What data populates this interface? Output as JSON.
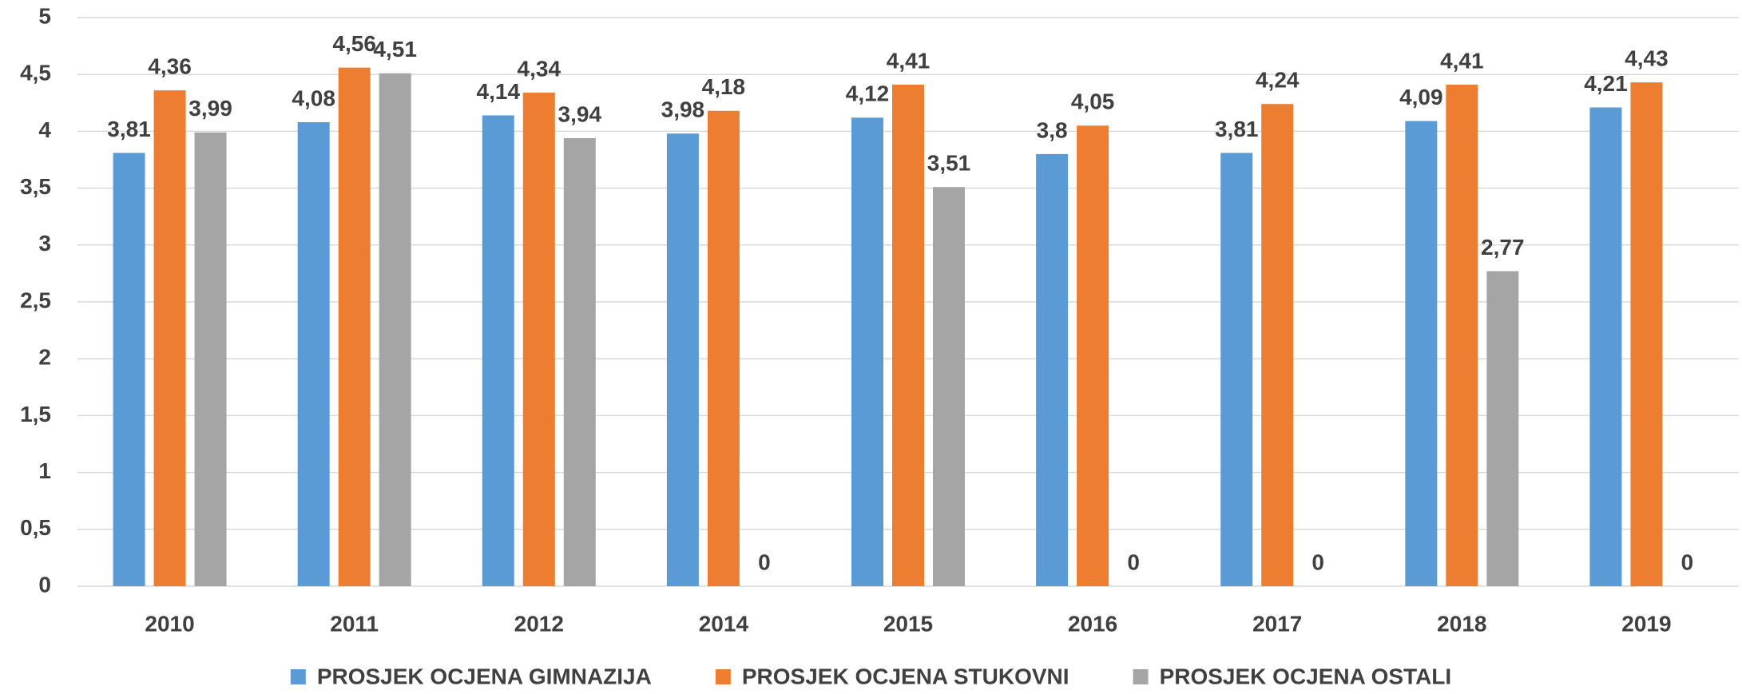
{
  "chart_data": {
    "type": "bar",
    "categories": [
      "2010",
      "2011",
      "2012",
      "2014",
      "2015",
      "2016",
      "2017",
      "2018",
      "2019"
    ],
    "series": [
      {
        "name": "PROSJEK OCJENA GIMNAZIJA",
        "color": "#5b9bd5",
        "label_color": "#404040",
        "values": [
          3.81,
          4.08,
          4.14,
          3.98,
          4.12,
          3.8,
          3.81,
          4.09,
          4.21
        ],
        "value_labels": [
          "3,81",
          "4,08",
          "4,14",
          "3,98",
          "4,12",
          "3,8",
          "3,81",
          "4,09",
          "4,21"
        ]
      },
      {
        "name": "PROSJEK OCJENA STUKOVNI",
        "color": "#ed7d31",
        "label_color": "#c55a11",
        "values": [
          4.36,
          4.56,
          4.34,
          4.18,
          4.41,
          4.05,
          4.24,
          4.41,
          4.43
        ],
        "value_labels": [
          "4,36",
          "4,56",
          "4,34",
          "4,18",
          "4,41",
          "4,05",
          "4,24",
          "4,41",
          "4,43"
        ]
      },
      {
        "name": "PROSJEK OCJENA OSTALI",
        "color": "#a5a5a5",
        "label_color": "#404040",
        "values": [
          3.99,
          4.51,
          3.94,
          0,
          3.51,
          0,
          0,
          2.77,
          0
        ],
        "value_labels": [
          "3,99",
          "4,51",
          "3,94",
          "0",
          "3,51",
          "0",
          "0",
          "2,77",
          "0"
        ]
      }
    ],
    "ylim": [
      0,
      5
    ],
    "yticks": [
      0,
      {
        "value": 0.5,
        "label": "0,5"
      },
      1,
      {
        "value": 1.5,
        "label": "1,5"
      },
      2,
      {
        "value": 2.5,
        "label": "2,5"
      },
      3,
      {
        "value": 3.5,
        "label": "3,5"
      },
      4,
      {
        "value": 4.5,
        "label": "4,5"
      },
      5
    ],
    "grid": true,
    "legend": "bottom"
  }
}
